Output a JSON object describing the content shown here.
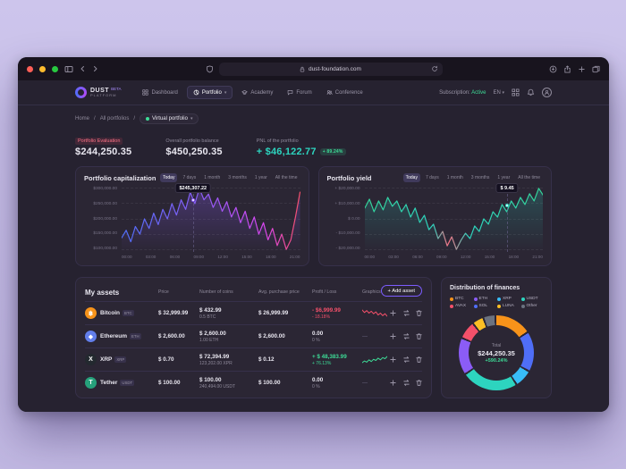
{
  "colors": {
    "accent": "#7c5cff",
    "positive": "#3ddc97",
    "negative": "#f4506a",
    "card_bg": "#2b2634"
  },
  "browser": {
    "url": "dust-foundation.com"
  },
  "nav": {
    "brand": {
      "name": "DUST",
      "badge": "BETA",
      "sub": "PLATFORM"
    },
    "items": [
      {
        "label": "Dashboard"
      },
      {
        "label": "Portfolio"
      },
      {
        "label": "Academy"
      },
      {
        "label": "Forum"
      },
      {
        "label": "Conference"
      }
    ],
    "subscription_label": "Subscription:",
    "subscription_value": "Active",
    "language": "EN"
  },
  "breadcrumb": {
    "home": "Home",
    "sep": "/",
    "all": "All portfolios",
    "current": "Virtual portfolio"
  },
  "stats": {
    "evaluation_label": "Portfolio Evaluation",
    "evaluation_value": "$244,250.35",
    "balance_label": "Overall portfolio balance",
    "balance_value": "$450,250.35",
    "pnl_label": "PNL of the portfolio",
    "pnl_value": "+ $46,122.77",
    "pnl_badge": "+ 89.24%"
  },
  "chart_data": [
    {
      "type": "line",
      "title": "Portfolio capitalization",
      "tabs": [
        "Today",
        "7 days",
        "1 month",
        "3 months",
        "1 year",
        "All the time"
      ],
      "active_tab": "Today",
      "tooltip": "$245,307.22",
      "ylim": [
        100000,
        300000
      ],
      "y_labels": [
        "$300,000.00",
        "$250,000.00",
        "$200,000.00",
        "$150,000.00",
        "$100,000.00"
      ],
      "x_labels": [
        "00:00",
        "03:00",
        "06:00",
        "09:00",
        "12:00",
        "15:00",
        "18:00",
        "21:00"
      ],
      "series": [
        160000,
        176000,
        152000,
        184000,
        168000,
        200000,
        180000,
        212000,
        188000,
        220000,
        200000,
        232000,
        208000,
        240000,
        220000,
        256000,
        232000,
        264000,
        240000,
        252000,
        224000,
        244000,
        216000,
        236000,
        204000,
        224000,
        192000,
        216000,
        180000,
        204000,
        168000,
        192000,
        156000,
        180000,
        144000,
        168000,
        136000,
        156000,
        204000,
        256000
      ]
    },
    {
      "type": "line",
      "title": "Portfolio yield",
      "tabs": [
        "Today",
        "7 days",
        "1 month",
        "3 months",
        "1 year",
        "All the time"
      ],
      "active_tab": "Today",
      "tooltip": "$ 9.45",
      "ylim": [
        -20000,
        20000
      ],
      "y_labels": [
        "+ $20,000.00",
        "+ $10,000.00",
        "$ 0.00",
        "- $10,000.00",
        "- $20,000.00"
      ],
      "x_labels": [
        "00:00",
        "03:00",
        "06:00",
        "09:00",
        "12:00",
        "15:00",
        "18:00",
        "21:00"
      ],
      "series": [
        4800,
        8800,
        3200,
        8000,
        4000,
        9600,
        5600,
        8000,
        3200,
        6400,
        800,
        4800,
        -1600,
        1600,
        -4800,
        -2400,
        -8800,
        -5600,
        -12000,
        -8000,
        -13600,
        -9600,
        -6400,
        -8800,
        -3200,
        -5600,
        0,
        -2400,
        3200,
        800,
        6400,
        3200,
        8000,
        4800,
        9600,
        6400,
        11200,
        8000,
        13600,
        10400
      ]
    }
  ],
  "assets": {
    "title": "My assets",
    "columns": [
      "Price",
      "Number of coins",
      "Avg. purchase price",
      "Profit / Loss",
      "Graphics"
    ],
    "add_button": "+ Add asset",
    "rows": [
      {
        "name": "Bitcoin",
        "symbol": "BTC",
        "icon": "bitcoin-icon",
        "icon_glyph": "฿",
        "color": "#f7931a",
        "price": "$ 32,999.99",
        "amount_value": "$ 432.99",
        "amount_coins": "0.5 BTC",
        "avg_price": "$ 26,999.99",
        "pl_value": "- $6,999.99",
        "pl_percent": "- 18.18%",
        "trend": "down",
        "spark": [
          7,
          5,
          6.5,
          4.5,
          6,
          4,
          5.5,
          3,
          4.5,
          2.5,
          4,
          2
        ],
        "spark_color": "#f4506a"
      },
      {
        "name": "Ethereum",
        "symbol": "ETH",
        "icon": "ethereum-icon",
        "icon_glyph": "◆",
        "color": "#627eea",
        "price": "$ 2,600.00",
        "amount_value": "$ 2,600.00",
        "amount_coins": "1.00 ETH",
        "avg_price": "$ 2,600.00",
        "pl_value": "0.00",
        "pl_percent": "0 %",
        "trend": "flat",
        "spark_placeholder": "—"
      },
      {
        "name": "XRP",
        "symbol": "XRP",
        "icon": "xrp-icon",
        "icon_glyph": "X",
        "color": "#23292f",
        "price": "$ 0.70",
        "amount_value": "$ 72,394.99",
        "amount_coins": "123,202.00 XPR",
        "avg_price": "$ 0.12",
        "pl_value": "+ $ 48,383.99",
        "pl_percent": "+ 76.13%",
        "trend": "up",
        "spark": [
          2,
          3.5,
          2.5,
          4.5,
          3,
          5,
          4,
          6,
          4.5,
          6.5,
          5.5,
          7.5
        ],
        "spark_color": "#3ddc97"
      },
      {
        "name": "Tether",
        "symbol": "USDT",
        "icon": "tether-icon",
        "icon_glyph": "T",
        "color": "#26a17b",
        "price": "$ 100.00",
        "amount_value": "$ 100.00",
        "amount_coins": "240,494.00 USDT",
        "avg_price": "$ 100.00",
        "pl_value": "0.00",
        "pl_percent": "0 %",
        "trend": "flat",
        "spark_placeholder": "—"
      }
    ]
  },
  "distribution": {
    "title": "Distribution of finances",
    "legend": [
      {
        "label": "BTC",
        "color": "#f7931a"
      },
      {
        "label": "ETH",
        "color": "#8b5cf6"
      },
      {
        "label": "XRP",
        "color": "#38bdf8"
      },
      {
        "label": "USDT",
        "color": "#2dd4bf"
      },
      {
        "label": "AVAX",
        "color": "#f4506a"
      },
      {
        "label": "SOL",
        "color": "#4f6ef7"
      },
      {
        "label": "LUNA",
        "color": "#fbbf24"
      },
      {
        "label": "Other",
        "color": "#6b7280"
      }
    ],
    "segments": [
      {
        "label": "BTC",
        "value": 55,
        "color": "#f7931a"
      },
      {
        "label": "SOL",
        "value": 60,
        "color": "#4f6ef7"
      },
      {
        "label": "XRP",
        "value": 25,
        "color": "#38bdf8"
      },
      {
        "label": "USDT",
        "value": 85,
        "color": "#2dd4bf"
      },
      {
        "label": "ETH",
        "value": 55,
        "color": "#8b5cf6"
      },
      {
        "label": "AVAX",
        "value": 25,
        "color": "#f4506a"
      },
      {
        "label": "LUNA",
        "value": 15,
        "color": "#fbbf24"
      },
      {
        "label": "Other",
        "value": 16,
        "color": "#6b7280"
      }
    ],
    "center": {
      "label": "Total",
      "value": "$244,250.35",
      "change": "+590.24%"
    }
  }
}
